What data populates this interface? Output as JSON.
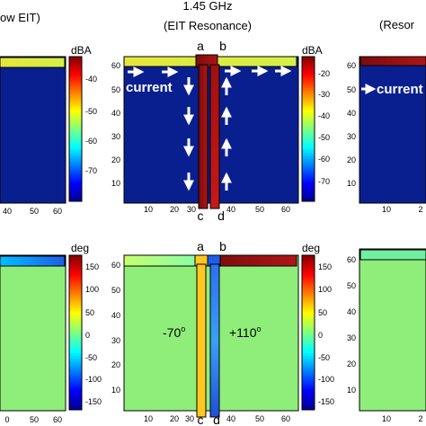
{
  "colors": {
    "field_blue": "#0a1f8f",
    "field_green": "#8fee7a",
    "arrow": "#ffffff",
    "bar_yellow": "#f0dc2a",
    "bar_darkred": "#8a1010",
    "bar_red": "#c81818",
    "bar_blue": "#1f5de6",
    "phase_yellow": "#ffc820"
  },
  "titles": {
    "left_partial": "ow EIT)",
    "center_freq": "1.45 GHz",
    "center_sub": "(EIT Resonance)",
    "right_partial": "(Resor"
  },
  "panels": {
    "top_left": {
      "colorbar_unit": "dBA",
      "colorbar_ticks": [
        "-40",
        "-50",
        "-60",
        "-70"
      ],
      "x_ticks": [
        "40",
        "50",
        "60"
      ]
    },
    "top_center": {
      "colorbar_unit": "dBA",
      "colorbar_ticks": [
        "-20",
        "-30",
        "-40",
        "-50",
        "-60",
        "-70"
      ],
      "y_ticks": [
        "60",
        "50",
        "40",
        "30",
        "20",
        "10"
      ],
      "x_ticks": [
        "10",
        "20",
        "30",
        "40",
        "50",
        "60"
      ],
      "port_top_left": "a",
      "port_top_right": "b",
      "port_bottom_left": "c",
      "port_bottom_right": "d",
      "current_label": "current"
    },
    "top_right": {
      "y_ticks": [
        "60",
        "50",
        "40",
        "30",
        "20",
        "10"
      ],
      "x_ticks": [
        "10",
        "2"
      ],
      "current_label": "current"
    },
    "bottom_left": {
      "colorbar_unit": "deg",
      "colorbar_ticks": [
        "150",
        "100",
        "50",
        "0",
        "-50",
        "-100",
        "-150"
      ],
      "x_ticks": [
        "0",
        "50",
        "60"
      ]
    },
    "bottom_center": {
      "colorbar_unit": "deg",
      "colorbar_ticks": [
        "150",
        "100",
        "50",
        "0",
        "-50",
        "-100",
        "-150"
      ],
      "y_ticks": [
        "60",
        "50",
        "40",
        "30",
        "20",
        "10"
      ],
      "x_ticks": [
        "10",
        "20",
        "30",
        "40",
        "50",
        "60"
      ],
      "port_top_left": "a",
      "port_top_right": "b",
      "port_bottom_left": "c",
      "port_bottom_right": "d",
      "phase_left": "-70",
      "phase_left_sup": "o",
      "phase_right": "+110",
      "phase_right_sup": "o"
    },
    "bottom_right": {
      "y_ticks": [
        "60",
        "50",
        "40",
        "30",
        "20",
        "10"
      ],
      "x_ticks": [
        "10",
        "2"
      ]
    }
  }
}
